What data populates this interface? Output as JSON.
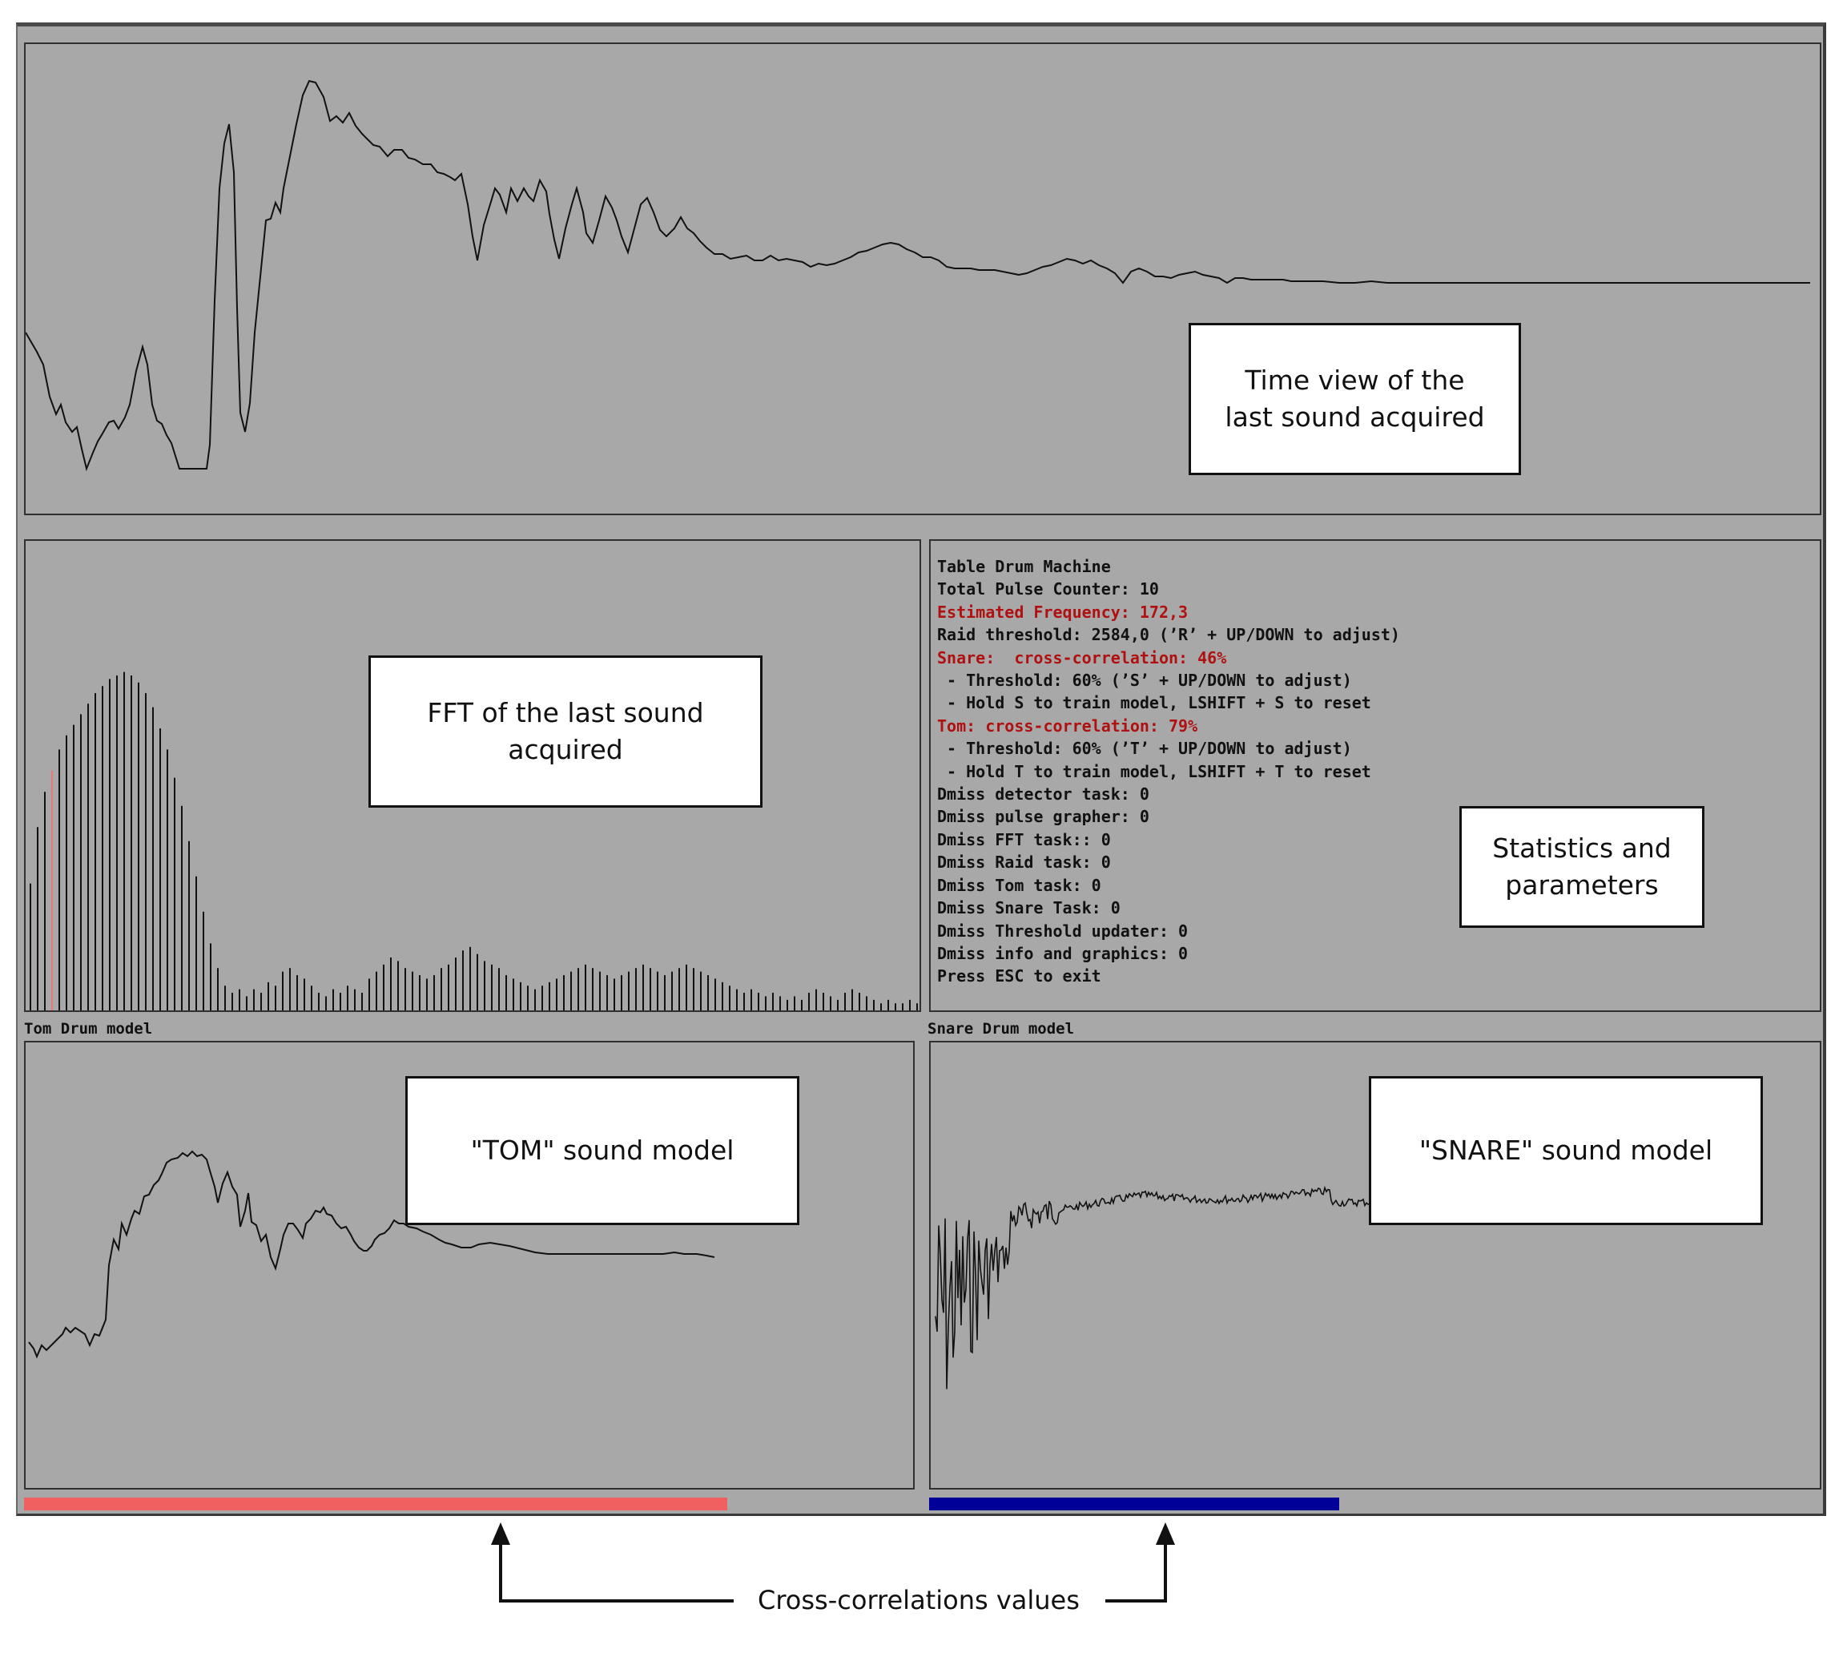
{
  "window": {
    "background": "#a8a8a8"
  },
  "time_view": {
    "callout": "Time view of the\nlast  sound acquired"
  },
  "fft_view": {
    "callout": "FFT of the last sound\nacquired",
    "bar_heights": [
      0.36,
      0.52,
      0.62,
      0.68,
      0.74,
      0.78,
      0.81,
      0.84,
      0.87,
      0.9,
      0.92,
      0.94,
      0.95,
      0.96,
      0.95,
      0.93,
      0.9,
      0.86,
      0.8,
      0.74,
      0.66,
      0.58,
      0.48,
      0.38,
      0.28,
      0.19,
      0.12,
      0.07,
      0.05,
      0.06,
      0.04,
      0.06,
      0.05,
      0.08,
      0.07,
      0.11,
      0.12,
      0.1,
      0.09,
      0.07,
      0.05,
      0.04,
      0.06,
      0.05,
      0.07,
      0.06,
      0.05,
      0.09,
      0.11,
      0.13,
      0.15,
      0.14,
      0.12,
      0.11,
      0.1,
      0.09,
      0.1,
      0.12,
      0.13,
      0.15,
      0.17,
      0.18,
      0.16,
      0.14,
      0.13,
      0.12,
      0.1,
      0.09,
      0.08,
      0.07,
      0.06,
      0.07,
      0.08,
      0.09,
      0.1,
      0.11,
      0.12,
      0.13,
      0.12,
      0.11,
      0.1,
      0.09,
      0.1,
      0.11,
      0.12,
      0.13,
      0.12,
      0.11,
      0.1,
      0.11,
      0.12,
      0.13,
      0.12,
      0.11,
      0.1,
      0.09,
      0.08,
      0.07,
      0.06,
      0.05,
      0.06,
      0.05,
      0.04,
      0.05,
      0.04,
      0.03,
      0.04,
      0.03,
      0.05,
      0.06,
      0.05,
      0.04,
      0.03,
      0.05,
      0.06,
      0.05,
      0.04,
      0.03,
      0.02,
      0.03,
      0.02,
      0.02,
      0.03,
      0.02
    ],
    "highlight_bar_index": 3,
    "highlight_color": "#e87878"
  },
  "stats": {
    "lines": [
      {
        "text": "Table Drum Machine",
        "highlight": false
      },
      {
        "text": "Total Pulse Counter: 10",
        "highlight": false
      },
      {
        "text": "Estimated Frequency: 172,3",
        "highlight": true
      },
      {
        "text": "Raid threshold: 2584,0 (’R’ + UP/DOWN to adjust)",
        "highlight": false
      },
      {
        "text": "Snare:  cross-correlation: 46%",
        "highlight": true
      },
      {
        "text": " - Threshold: 60% (’S’ + UP/DOWN to adjust)",
        "highlight": false
      },
      {
        "text": " - Hold S to train model, LSHIFT + S to reset",
        "highlight": false
      },
      {
        "text": "Tom: cross-correlation: 79%",
        "highlight": true
      },
      {
        "text": " - Threshold: 60% (’T’ + UP/DOWN to adjust)",
        "highlight": false
      },
      {
        "text": " - Hold T to train model, LSHIFT + T to reset",
        "highlight": false
      },
      {
        "text": "Dmiss detector task: 0",
        "highlight": false
      },
      {
        "text": "Dmiss pulse grapher: 0",
        "highlight": false
      },
      {
        "text": "Dmiss FFT task:: 0",
        "highlight": false
      },
      {
        "text": "Dmiss Raid task: 0",
        "highlight": false
      },
      {
        "text": "Dmiss Tom task: 0",
        "highlight": false
      },
      {
        "text": "Dmiss Snare Task: 0",
        "highlight": false
      },
      {
        "text": "Dmiss Threshold updater: 0",
        "highlight": false
      },
      {
        "text": "Dmiss info and graphics: 0",
        "highlight": false
      },
      {
        "text": "Press ESC to exit",
        "highlight": false
      }
    ],
    "callout": "Statistics and\nparameters"
  },
  "tom_model": {
    "title": "Tom Drum model",
    "callout": "\"TOM\" sound model",
    "correlation": 0.79,
    "bar_color": "#f06060"
  },
  "snare_model": {
    "title": "Snare Drum model",
    "callout": "\"SNARE\" sound model",
    "correlation": 0.46,
    "bar_color": "#000099"
  },
  "annotation": {
    "label": "Cross-correlations values"
  }
}
